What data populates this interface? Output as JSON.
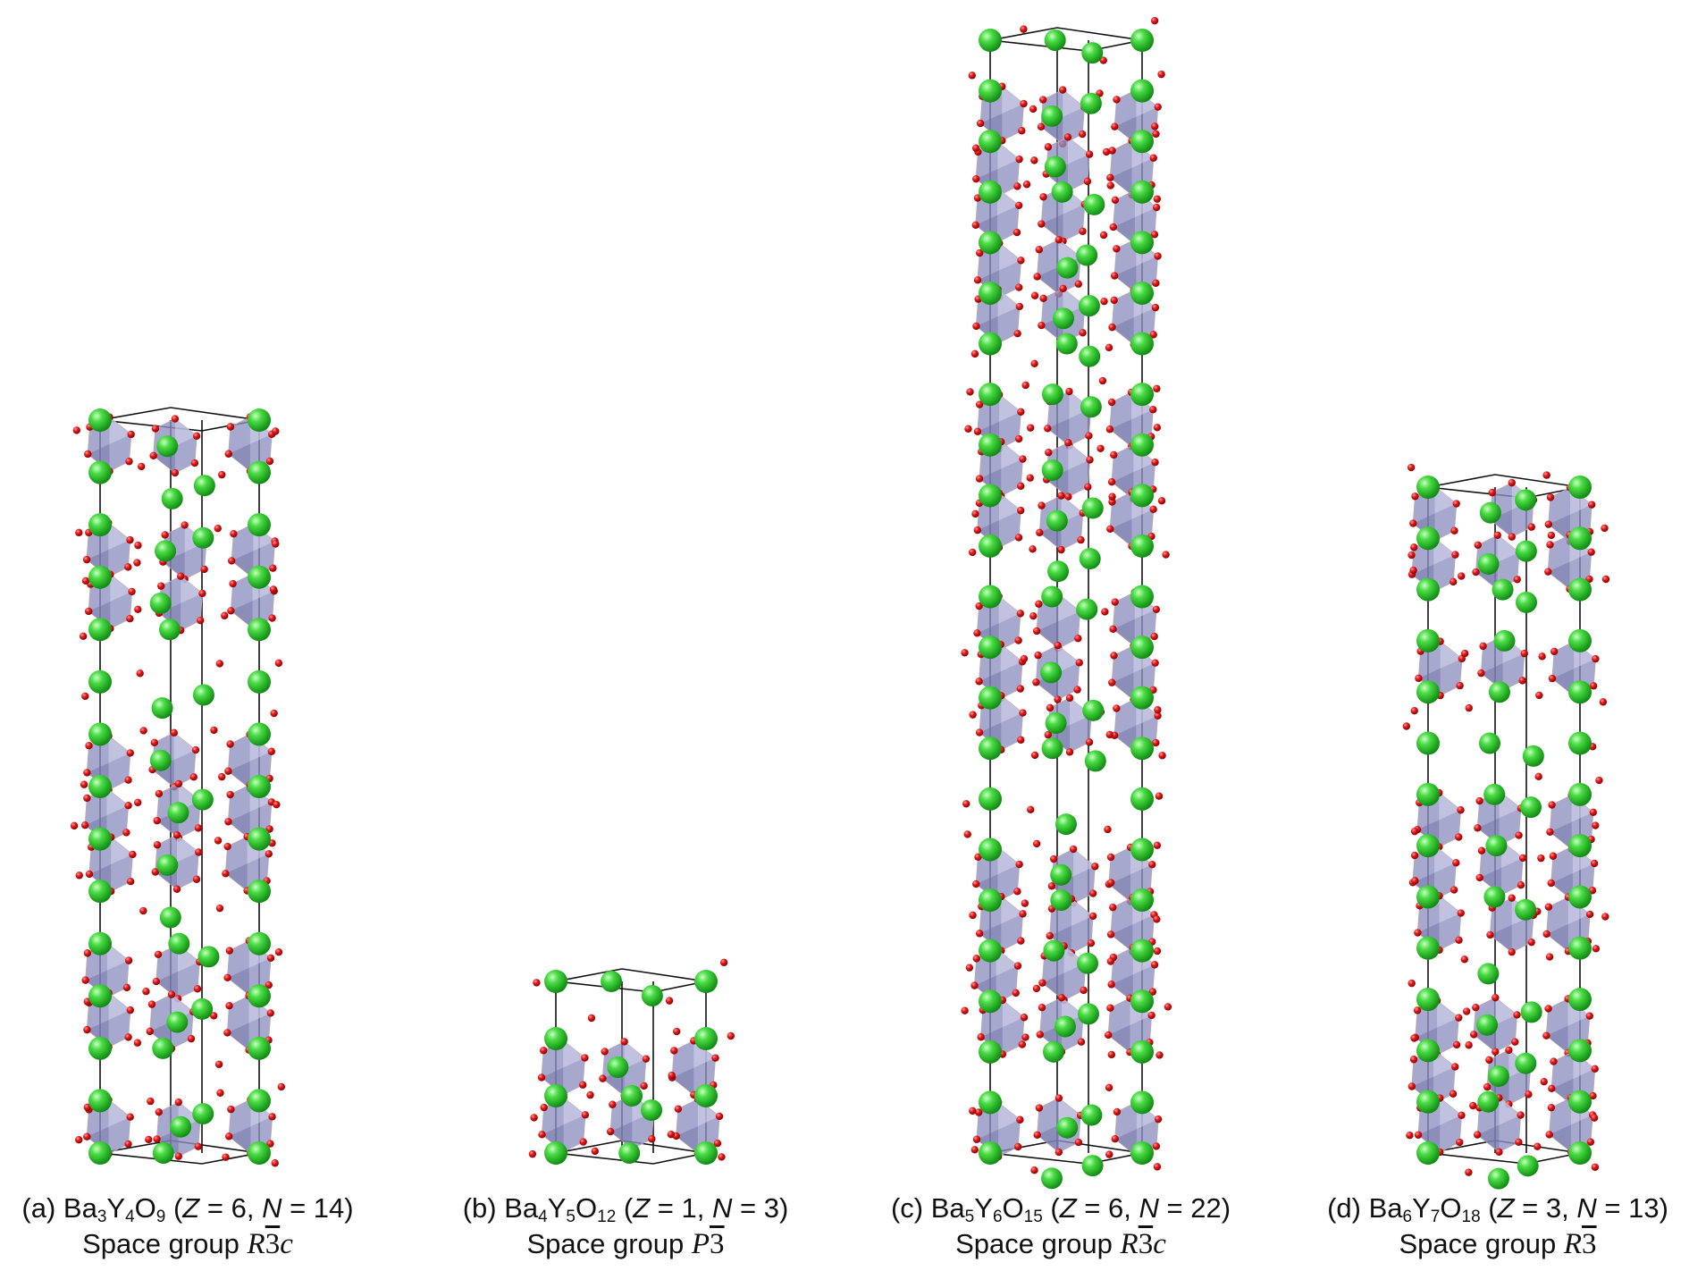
{
  "panels": [
    {
      "label": "(a)",
      "formula": [
        [
          "Ba",
          "3"
        ],
        [
          "Y",
          "4"
        ],
        [
          "O",
          "9"
        ]
      ],
      "Z": "6",
      "N": "14",
      "sg_prefix": "Space group",
      "sg_parts": [
        "R",
        "3",
        "c"
      ],
      "layers": 14
    },
    {
      "label": "(b)",
      "formula": [
        [
          "Ba",
          "4"
        ],
        [
          "Y",
          "5"
        ],
        [
          "O",
          "12"
        ]
      ],
      "Z": "1",
      "N": "3",
      "sg_prefix": "Space group",
      "sg_parts": [
        "P",
        "3",
        ""
      ],
      "layers": 3
    },
    {
      "label": "(c)",
      "formula": [
        [
          "Ba",
          "5"
        ],
        [
          "Y",
          "6"
        ],
        [
          "O",
          "15"
        ]
      ],
      "Z": "6",
      "N": "22",
      "sg_prefix": "Space group",
      "sg_parts": [
        "R",
        "3",
        "c"
      ],
      "layers": 22
    },
    {
      "label": "(d)",
      "formula": [
        [
          "Ba",
          "6"
        ],
        [
          "Y",
          "7"
        ],
        [
          "O",
          "18"
        ]
      ],
      "Z": "3",
      "N": "13",
      "sg_prefix": "Space group",
      "sg_parts": [
        "R",
        "3",
        ""
      ],
      "layers": 13
    }
  ],
  "colors": {
    "ba_atom": "#22c322",
    "o_atom": "#dd1111",
    "y_octahedron": "#8e8fbf",
    "cell_edge": "#111111"
  }
}
